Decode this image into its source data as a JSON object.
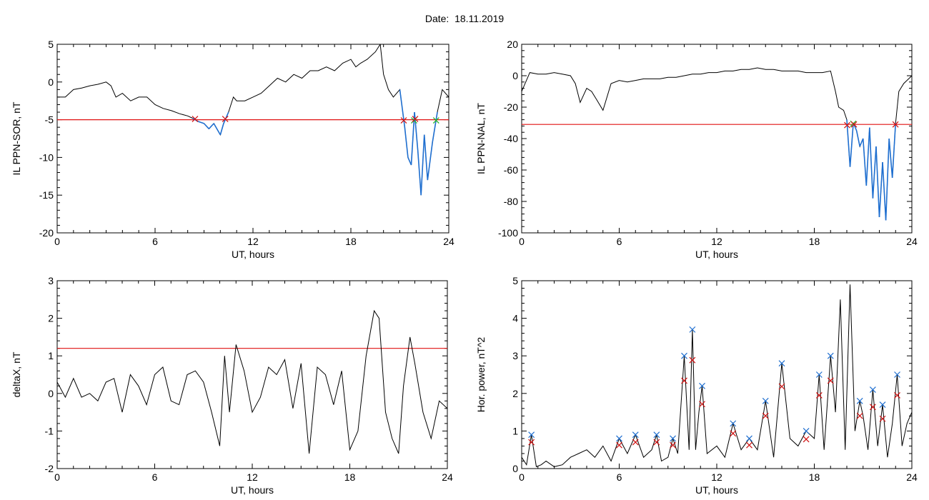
{
  "page": {
    "date_label": "Date:",
    "date_value": "18.11.2019"
  },
  "colors": {
    "frame": "#000000",
    "trace": "#000000",
    "threshold": "#e01010",
    "exceed_trace": "#1f6fd0",
    "marker_red": "#d01010",
    "marker_green": "#20b020",
    "marker_blue": "#1f6fd0"
  },
  "chart_data": [
    {
      "type": "line",
      "panel": "top-left",
      "title": "",
      "xlabel": "UT, hours",
      "ylabel": "IL PPN-SOR, nT",
      "xlim": [
        0,
        24
      ],
      "ylim": [
        -20,
        5
      ],
      "xticks": [
        0,
        6,
        12,
        18,
        24
      ],
      "yticks": [
        -20,
        -15,
        -10,
        -5,
        0,
        5
      ],
      "threshold": -5,
      "series": [
        {
          "x": [
            0,
            0.5,
            1,
            1.5,
            2,
            2.5,
            3,
            3.3,
            3.6,
            4,
            4.5,
            5,
            5.5,
            6,
            6.5,
            7,
            7.5,
            8,
            8.3,
            8.6,
            9,
            9.3,
            9.6,
            10,
            10.2,
            10.5,
            10.8,
            11,
            11.5,
            12,
            12.5,
            13,
            13.5,
            14,
            14.5,
            15,
            15.5,
            16,
            16.5,
            17,
            17.5,
            18,
            18.3,
            18.6,
            19,
            19.5,
            19.8,
            20,
            20.3,
            20.6,
            21,
            21.3,
            21.5,
            21.7,
            21.9,
            22.1,
            22.3,
            22.5,
            22.7,
            23,
            23.3,
            23.6,
            24
          ],
          "y": [
            -2,
            -2,
            -1,
            -0.8,
            -0.5,
            -0.3,
            0,
            -0.5,
            -2,
            -1.5,
            -2.5,
            -2,
            -2,
            -3,
            -3.5,
            -3.8,
            -4.2,
            -4.5,
            -4.8,
            -5.2,
            -5.5,
            -6.2,
            -5.5,
            -7,
            -5.5,
            -4,
            -2,
            -2.5,
            -2.5,
            -2,
            -1.5,
            -0.5,
            0.5,
            0,
            1,
            0.5,
            1.5,
            1.5,
            2,
            1.5,
            2.5,
            3,
            2,
            2.5,
            3,
            4,
            5,
            1,
            -1,
            -2,
            -1,
            -6,
            -10,
            -11,
            -4,
            -9,
            -15,
            -7,
            -13,
            -8,
            -4,
            -1,
            -2
          ]
        }
      ]
    },
    {
      "type": "line",
      "panel": "top-right",
      "title": "",
      "xlabel": "UT, hours",
      "ylabel": "IL PPN-NAL, nT",
      "xlim": [
        0,
        24
      ],
      "ylim": [
        -100,
        20
      ],
      "xticks": [
        0,
        6,
        12,
        18,
        24
      ],
      "yticks": [
        -100,
        -80,
        -60,
        -40,
        -20,
        0,
        20
      ],
      "threshold": -31,
      "series": [
        {
          "x": [
            0,
            0.5,
            1,
            1.5,
            2,
            2.5,
            3,
            3.3,
            3.6,
            4,
            4.3,
            4.6,
            5,
            5.5,
            6,
            6.5,
            7,
            7.5,
            8,
            8.5,
            9,
            9.5,
            10,
            10.5,
            11,
            11.5,
            12,
            12.5,
            13,
            13.5,
            14,
            14.5,
            15,
            15.5,
            16,
            16.5,
            17,
            17.5,
            18,
            18.5,
            19,
            19.3,
            19.5,
            19.8,
            20,
            20.2,
            20.4,
            20.6,
            20.8,
            21,
            21.2,
            21.4,
            21.6,
            21.8,
            22,
            22.2,
            22.4,
            22.6,
            22.8,
            23,
            23.2,
            23.5,
            24
          ],
          "y": [
            -10,
            2,
            1,
            1,
            2,
            1,
            0,
            -5,
            -17,
            -8,
            -10,
            -15,
            -22,
            -5,
            -3,
            -4,
            -3,
            -2,
            -2,
            -2,
            -1,
            -1,
            0,
            1,
            1,
            2,
            2,
            3,
            3,
            4,
            4,
            5,
            4,
            4,
            3,
            3,
            3,
            2,
            2,
            2,
            3,
            -10,
            -20,
            -22,
            -28,
            -58,
            -30,
            -35,
            -45,
            -40,
            -70,
            -33,
            -78,
            -45,
            -90,
            -55,
            -92,
            -40,
            -65,
            -30,
            -10,
            -5,
            0
          ]
        }
      ]
    },
    {
      "type": "line",
      "panel": "bottom-left",
      "title": "",
      "xlabel": "UT, hours",
      "ylabel": "deltaX, nT",
      "xlim": [
        0,
        24
      ],
      "ylim": [
        -2,
        3
      ],
      "xticks": [
        0,
        6,
        12,
        18,
        24
      ],
      "yticks": [
        -2,
        -1,
        0,
        1,
        2,
        3
      ],
      "threshold": 1.2,
      "series": [
        {
          "x": [
            0,
            0.5,
            1,
            1.5,
            2,
            2.5,
            3,
            3.5,
            4,
            4.5,
            5,
            5.5,
            6,
            6.5,
            7,
            7.5,
            8,
            8.5,
            9,
            9.5,
            10,
            10.3,
            10.6,
            11,
            11.5,
            12,
            12.5,
            13,
            13.5,
            14,
            14.5,
            15,
            15.5,
            16,
            16.5,
            17,
            17.5,
            18,
            18.5,
            19,
            19.5,
            19.8,
            20.2,
            20.6,
            21,
            21.3,
            21.7,
            22,
            22.5,
            23,
            23.5,
            24
          ],
          "y": [
            0.3,
            -0.1,
            0.4,
            -0.1,
            0,
            -0.2,
            0.3,
            0.4,
            -0.5,
            0.5,
            0.2,
            -0.3,
            0.5,
            0.7,
            -0.2,
            -0.3,
            0.5,
            0.6,
            0.3,
            -0.5,
            -1.4,
            1.0,
            -0.5,
            1.3,
            0.6,
            -0.5,
            -0.1,
            0.7,
            0.5,
            0.9,
            -0.4,
            0.8,
            -1.6,
            0.7,
            0.5,
            -0.3,
            0.6,
            -1.5,
            -1.0,
            1.0,
            2.2,
            2.0,
            -0.5,
            -1.2,
            -1.6,
            0.2,
            1.5,
            0.8,
            -0.5,
            -1.2,
            -0.2,
            -0.4
          ]
        }
      ]
    },
    {
      "type": "line",
      "panel": "bottom-right",
      "title": "",
      "xlabel": "UT, hours",
      "ylabel": "Hor. power, nT^2",
      "xlim": [
        0,
        24
      ],
      "ylim": [
        0,
        5
      ],
      "xticks": [
        0,
        6,
        12,
        18,
        24
      ],
      "yticks": [
        0,
        1,
        2,
        3,
        4,
        5
      ],
      "series": [
        {
          "x": [
            0,
            0.3,
            0.6,
            0.9,
            1.2,
            1.5,
            2,
            2.5,
            3,
            3.5,
            4,
            4.5,
            5,
            5.5,
            6,
            6.5,
            7,
            7.5,
            8,
            8.3,
            8.6,
            9,
            9.3,
            9.6,
            10,
            10.3,
            10.5,
            10.7,
            10.9,
            11.1,
            11.4,
            12,
            12.5,
            13,
            13.5,
            14,
            14.5,
            15,
            15.5,
            16,
            16.5,
            17,
            17.5,
            18,
            18.3,
            18.6,
            19,
            19.3,
            19.6,
            19.9,
            20.2,
            20.5,
            20.8,
            21,
            21.3,
            21.6,
            21.9,
            22.2,
            22.5,
            22.8,
            23.1,
            23.4,
            23.7,
            24
          ],
          "y": [
            0.3,
            0.1,
            0.9,
            0.05,
            0.1,
            0.2,
            0.05,
            0.1,
            0.3,
            0.4,
            0.5,
            0.3,
            0.6,
            0.2,
            0.8,
            0.4,
            0.9,
            0.3,
            0.5,
            0.9,
            0.2,
            0.3,
            0.8,
            0.4,
            3.0,
            0.5,
            3.7,
            0.5,
            1.5,
            2.2,
            0.4,
            0.6,
            0.3,
            1.2,
            0.5,
            0.8,
            0.5,
            1.8,
            0.3,
            2.8,
            0.8,
            0.6,
            1.0,
            0.8,
            2.5,
            0.5,
            3.0,
            1.5,
            4.5,
            0.5,
            4.9,
            1.0,
            1.8,
            1.4,
            0.5,
            2.1,
            0.6,
            1.7,
            0.3,
            1.2,
            2.5,
            0.6,
            1.2,
            1.5
          ]
        }
      ]
    }
  ]
}
